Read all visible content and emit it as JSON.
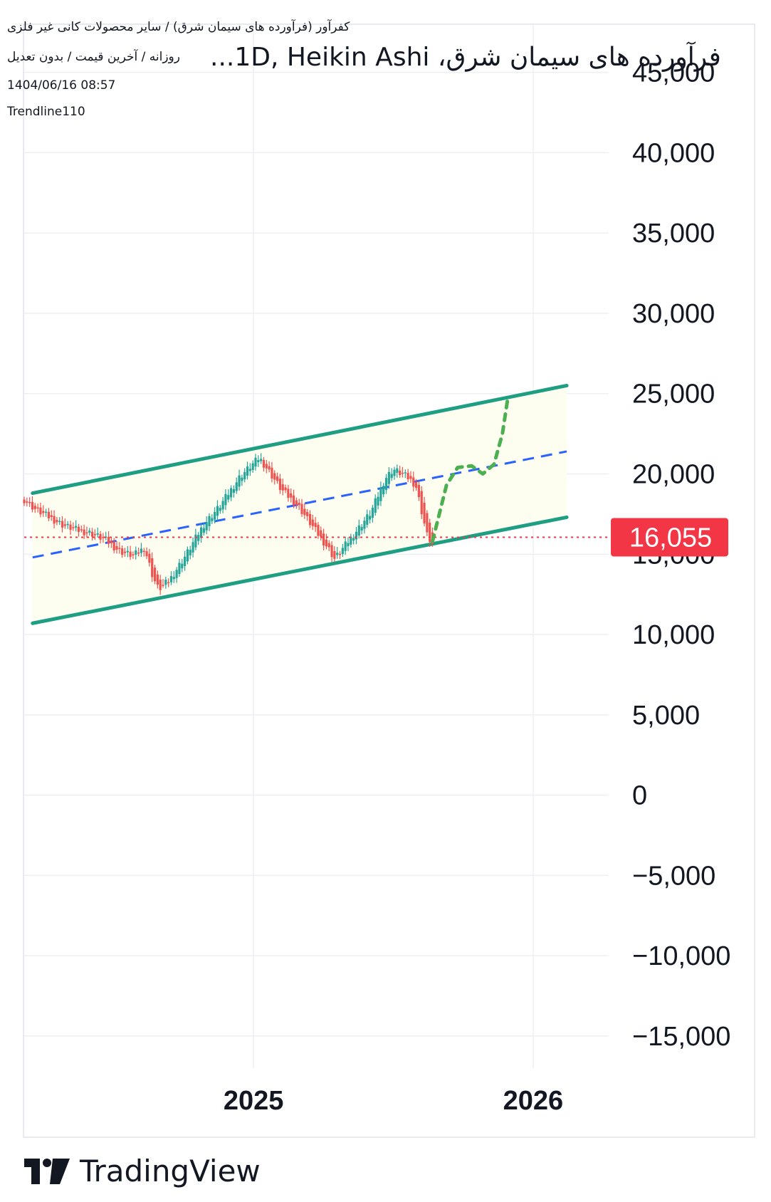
{
  "header": {
    "line1": "کفرآور (فرآورده های سیمان شرق) / سایر محصولات کانی غیر فلزی",
    "line2": "روزانه / آخرین قیمت / بدون تعدیل",
    "datetime": "1404/06/16 08:57",
    "author": "Trendline110",
    "title": "فرآورده های سیمان شرق، 1D, Heikin Ashi..."
  },
  "brand": {
    "name": "TradingView"
  },
  "colors": {
    "up": "#26a69a",
    "down": "#ef5350",
    "channel": "#1e9e82",
    "midline": "#2962ff",
    "projection": "#4caf50",
    "price_label": "#f23645",
    "grid": "#eeeff2",
    "channel_fill": "#fdfdf0"
  },
  "chart_data": {
    "type": "candlestick",
    "style": "Heikin Ashi",
    "interval": "1D",
    "y_ticks": [
      45000,
      40000,
      35000,
      30000,
      25000,
      20000,
      15000,
      10000,
      5000,
      0,
      -5000,
      -10000,
      -15000
    ],
    "y_tick_labels": [
      "45,000",
      "40,000",
      "35,000",
      "30,000",
      "25,000",
      "20,000",
      "15,000",
      "10,000",
      "5,000",
      "0",
      "−5,000",
      "−10,000",
      "−15,000"
    ],
    "x_ticks": [
      2025,
      2026
    ],
    "x_tick_labels": [
      "2025",
      "2026"
    ],
    "xlim": [
      2024.18,
      2026.27
    ],
    "ylim": [
      -17000,
      48000
    ],
    "last_price": 16055,
    "last_price_label": "16,055",
    "price_path": [
      [
        2024.18,
        18400
      ],
      [
        2024.22,
        17800
      ],
      [
        2024.27,
        17300
      ],
      [
        2024.32,
        16800
      ],
      [
        2024.37,
        16500
      ],
      [
        2024.42,
        16300
      ],
      [
        2024.47,
        15900
      ],
      [
        2024.52,
        15200
      ],
      [
        2024.57,
        14900
      ],
      [
        2024.61,
        15400
      ],
      [
        2024.64,
        13600
      ],
      [
        2024.66,
        12800
      ],
      [
        2024.7,
        13400
      ],
      [
        2024.76,
        15000
      ],
      [
        2024.82,
        16800
      ],
      [
        2024.88,
        18000
      ],
      [
        2024.95,
        19800
      ],
      [
        2025.02,
        21000
      ],
      [
        2025.05,
        20300
      ],
      [
        2025.1,
        19000
      ],
      [
        2025.16,
        18000
      ],
      [
        2025.22,
        16500
      ],
      [
        2025.27,
        15300
      ],
      [
        2025.29,
        14700
      ],
      [
        2025.33,
        15600
      ],
      [
        2025.37,
        16500
      ],
      [
        2025.42,
        17600
      ],
      [
        2025.47,
        19700
      ],
      [
        2025.5,
        20300
      ],
      [
        2025.55,
        19800
      ],
      [
        2025.58,
        19300
      ],
      [
        2025.62,
        16200
      ],
      [
        2025.64,
        15600
      ]
    ],
    "projection": [
      [
        2025.64,
        15800
      ],
      [
        2025.67,
        17900
      ],
      [
        2025.69,
        19300
      ],
      [
        2025.73,
        20400
      ],
      [
        2025.78,
        20500
      ],
      [
        2025.82,
        20000
      ],
      [
        2025.86,
        20600
      ],
      [
        2025.89,
        22500
      ],
      [
        2025.91,
        24800
      ]
    ],
    "channel_upper": [
      [
        2024.21,
        18800
      ],
      [
        2026.12,
        25500
      ]
    ],
    "channel_lower": [
      [
        2024.21,
        10700
      ],
      [
        2026.12,
        17300
      ]
    ],
    "channel_mid": [
      [
        2024.21,
        14800
      ],
      [
        2026.12,
        21400
      ]
    ],
    "support_line": 16055
  }
}
